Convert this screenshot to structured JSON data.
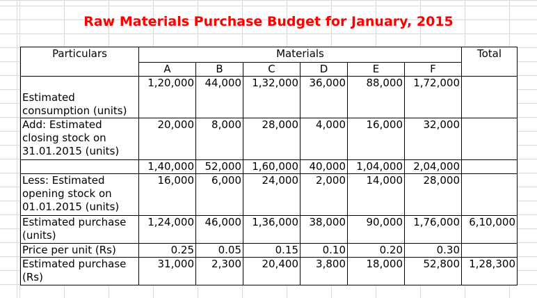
{
  "title": "Raw Materials Purchase Budget for January, 2015",
  "table": {
    "header": {
      "particulars": "Particulars",
      "materials": "Materials",
      "total": "Total"
    },
    "materials": [
      "A",
      "B",
      "C",
      "D",
      "E",
      "F"
    ],
    "rows": [
      {
        "label": "Estimated consumption (units)",
        "values": [
          "1,20,000",
          "44,000",
          "1,32,000",
          "36,000",
          "88,000",
          "1,72,000"
        ]
      },
      {
        "label": "Add: Estimated closing stock on 31.01.2015 (units)",
        "values": [
          "20,000",
          "8,000",
          "28,000",
          "4,000",
          "16,000",
          "32,000"
        ]
      },
      {
        "values": [
          "1,40,000",
          "52,000",
          "1,60,000",
          "40,000",
          "1,04,000",
          "2,04,000"
        ]
      },
      {
        "label": "Less: Estimated opening stock on 01.01.2015 (units)",
        "values": [
          "16,000",
          "6,000",
          "24,000",
          "2,000",
          "14,000",
          "28,000"
        ]
      },
      {
        "label": "Estimated purchase (units)",
        "values": [
          "1,24,000",
          "46,000",
          "1,36,000",
          "38,000",
          "90,000",
          "1,76,000"
        ],
        "total": "6,10,000"
      },
      {
        "label": "Price per unit (Rs)",
        "values": [
          "0.25",
          "0.05",
          "0.15",
          "0.10",
          "0.20",
          "0.30"
        ]
      },
      {
        "label": "Estimated purchase (Rs)",
        "values": [
          "31,000",
          "2,300",
          "20,400",
          "3,800",
          "18,000",
          "52,800"
        ],
        "total": "1,28,300"
      }
    ]
  }
}
